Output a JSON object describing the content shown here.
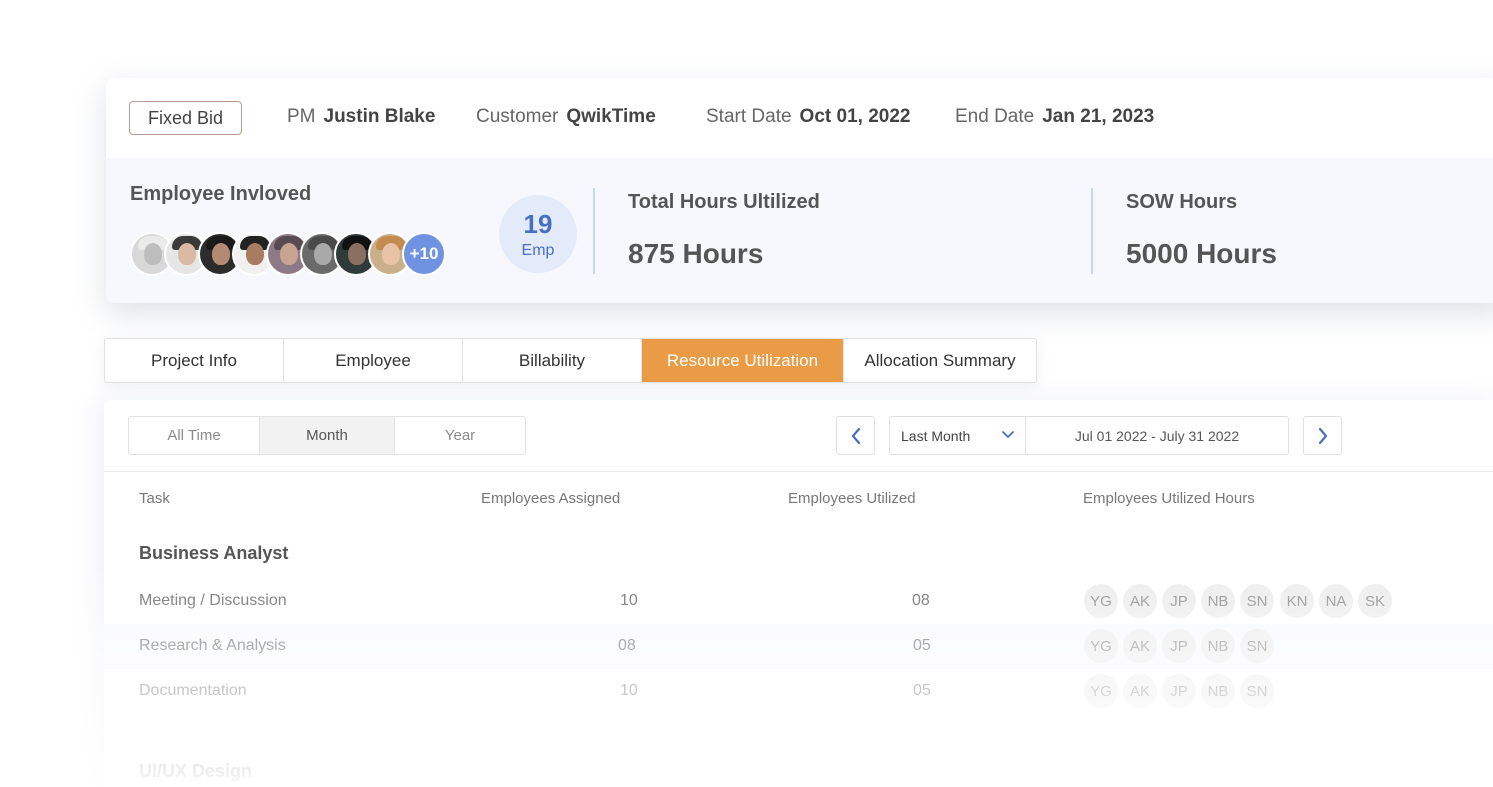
{
  "header": {
    "badge": "Fixed Bid",
    "pm_label": "PM",
    "pm_value": "Justin Blake",
    "customer_label": "Customer",
    "customer_value": "QwikTime",
    "start_label": "Start Date",
    "start_value": "Oct 01, 2022",
    "end_label": "End Date",
    "end_value": "Jan 21, 2023"
  },
  "summary": {
    "employees_title": "Employee Invloved",
    "more_count": "+10",
    "emp_count": "19",
    "emp_unit": "Emp",
    "total_label": "Total Hours Ultilized",
    "total_value": "875 Hours",
    "sow_label": "SOW Hours",
    "sow_value": "5000 Hours"
  },
  "tabs": [
    {
      "label": "Project Info"
    },
    {
      "label": "Employee"
    },
    {
      "label": "Billability"
    },
    {
      "label": "Resource Utilization"
    },
    {
      "label": "Allocation Summary"
    }
  ],
  "filters": {
    "period": [
      "All Time",
      "Month",
      "Year"
    ],
    "range_option": "Last Month",
    "range_text": "Jul 01 2022 - July 31 2022"
  },
  "table": {
    "headers": [
      "Task",
      "Employees Assigned",
      "Employees Utilized",
      "Employees Utilized Hours"
    ],
    "group1": "Business Analyst",
    "rows": [
      {
        "task": "Meeting / Discussion",
        "assigned": "10",
        "utilized": "08",
        "chips": [
          "YG",
          "AK",
          "JP",
          "NB",
          "SN",
          "KN",
          "NA",
          "SK"
        ]
      },
      {
        "task": "Research & Analysis",
        "assigned": "08",
        "utilized": "05",
        "chips": [
          "YG",
          "AK",
          "JP",
          "NB",
          "SN"
        ]
      },
      {
        "task": "Documentation",
        "assigned": "10",
        "utilized": "05",
        "chips": [
          "YG",
          "AK",
          "JP",
          "NB",
          "SN"
        ]
      }
    ],
    "group2": "UI/UX Design"
  },
  "colors": {
    "accent": "#e99b45",
    "primary": "#4a6fc0",
    "more_avatar": "#6f93e0"
  }
}
